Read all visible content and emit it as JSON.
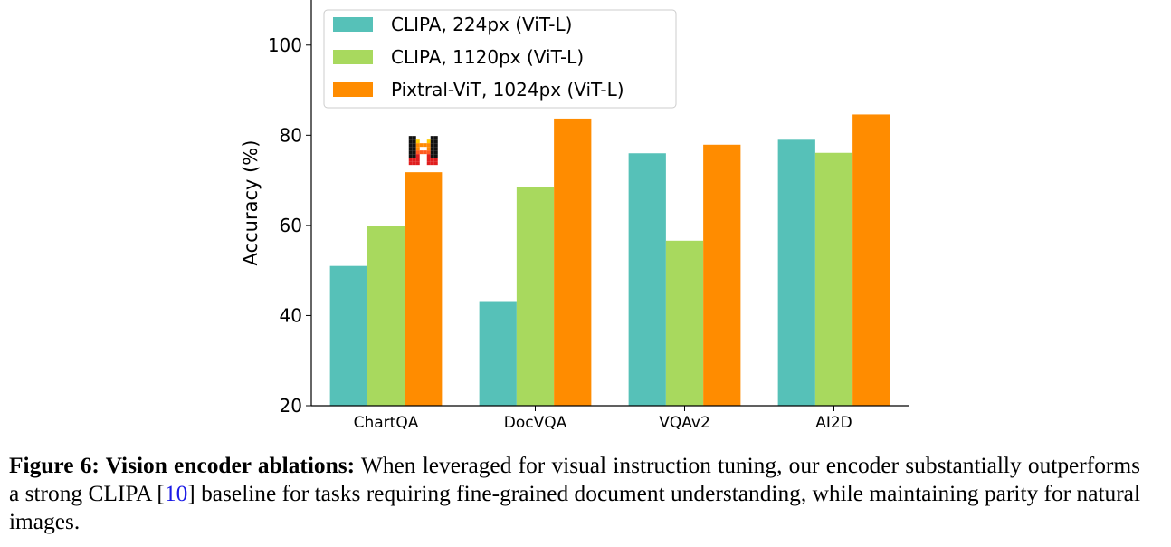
{
  "chart_data": {
    "type": "bar",
    "ylabel": "Accuracy (%)",
    "ylim": [
      20,
      110
    ],
    "yticks": [
      "20",
      "40",
      "60",
      "80",
      "100"
    ],
    "categories": [
      "ChartQA",
      "DocVQA",
      "VQAv2",
      "AI2D"
    ],
    "series": [
      {
        "name": "CLIPA, 224px (ViT-L)",
        "color": "#56c1b8",
        "values": [
          51.0,
          43.2,
          76.0,
          79.0
        ]
      },
      {
        "name": "CLIPA, 1120px (ViT-L)",
        "color": "#a8d95e",
        "values": [
          59.9,
          68.5,
          56.6,
          76.1
        ]
      },
      {
        "name": "Pixtral-ViT, 1024px (ViT-L)",
        "color": "#ff8c00",
        "values": [
          71.8,
          83.7,
          77.9,
          84.6
        ]
      }
    ],
    "legend_position": "top-left",
    "grid": false,
    "marker": {
      "icon": "mistral-logo-icon",
      "category": "ChartQA",
      "series": "Pixtral-ViT, 1024px (ViT-L)"
    }
  },
  "caption": {
    "lead": "Figure 6: Vision encoder ablations:",
    "text_before_ref": " When leveraged for visual instruction tuning, our encoder substantially outperforms a strong CLIPA [",
    "ref": "10",
    "text_after_ref": "] baseline for tasks requiring fine-grained document understanding, while maintaining parity for natural images."
  }
}
